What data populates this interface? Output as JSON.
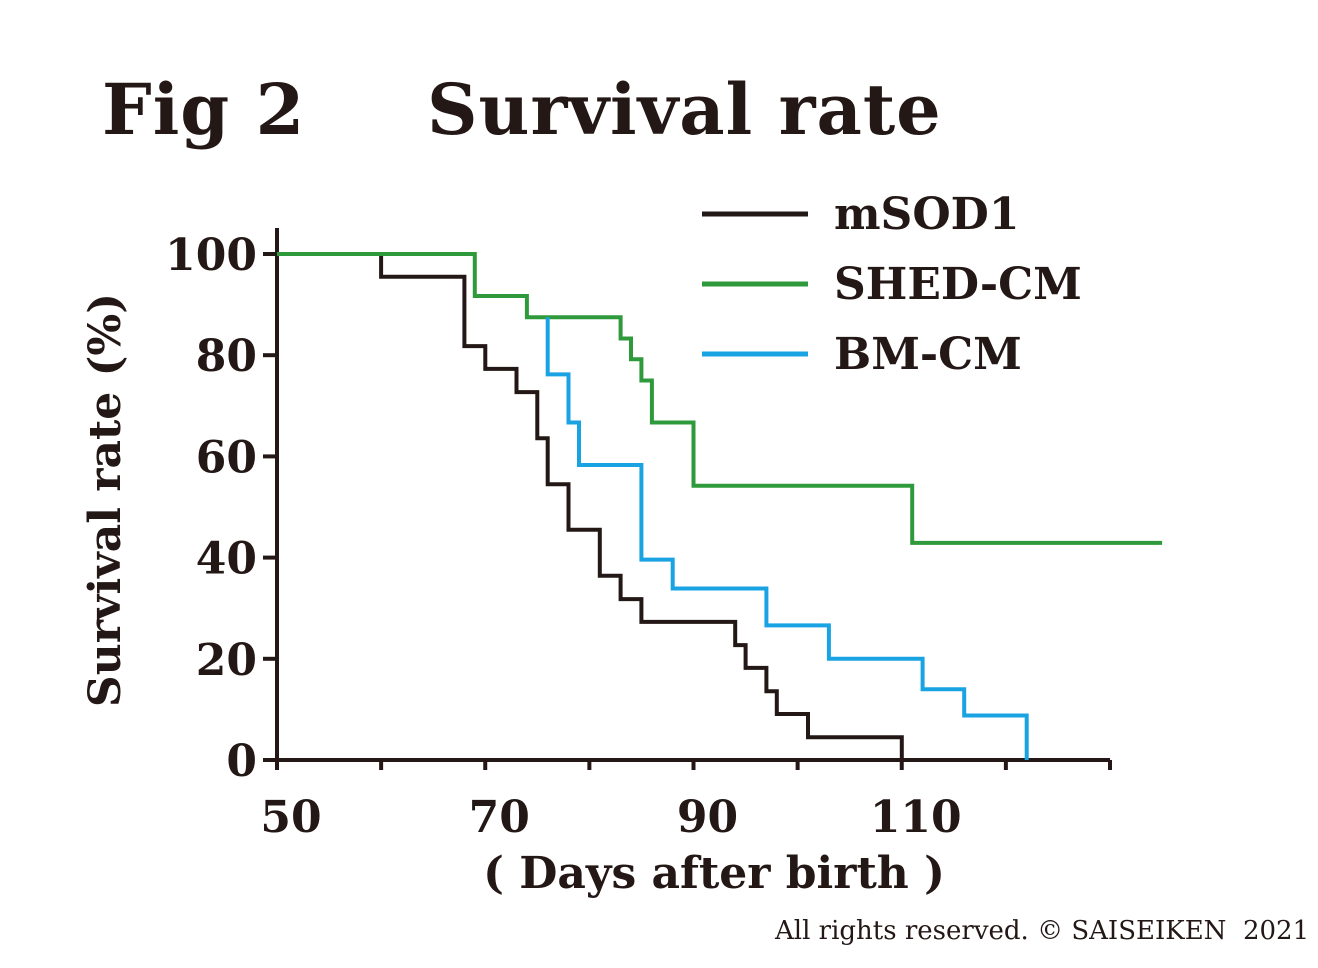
{
  "figure": {
    "label": "Fig 2",
    "title": "Survival rate",
    "copyright": "All rights reserved. © SAISEIKEN  2021"
  },
  "chart_data": {
    "type": "line",
    "step": true,
    "xlabel": "( Days after birth )",
    "ylabel": "Survival  rate (%)",
    "xlim": [
      50,
      130
    ],
    "ylim": [
      0,
      100
    ],
    "x_ticks": [
      50,
      70,
      90,
      110
    ],
    "y_ticks": [
      0,
      20,
      40,
      60,
      80,
      100
    ],
    "grid": false,
    "legend": "top-right",
    "series": [
      {
        "name": "mSOD1",
        "color": "#231815",
        "points": [
          [
            50,
            100
          ],
          [
            60,
            100
          ],
          [
            60,
            95.5
          ],
          [
            68,
            95.5
          ],
          [
            68,
            81.8
          ],
          [
            70,
            81.8
          ],
          [
            70,
            77.3
          ],
          [
            73,
            77.3
          ],
          [
            73,
            72.7
          ],
          [
            75,
            72.7
          ],
          [
            75,
            63.6
          ],
          [
            76,
            63.6
          ],
          [
            76,
            54.5
          ],
          [
            78,
            54.5
          ],
          [
            78,
            45.5
          ],
          [
            81,
            45.5
          ],
          [
            81,
            36.4
          ],
          [
            83,
            36.4
          ],
          [
            83,
            31.8
          ],
          [
            85,
            31.8
          ],
          [
            85,
            27.3
          ],
          [
            94,
            27.3
          ],
          [
            94,
            22.7
          ],
          [
            95,
            22.7
          ],
          [
            95,
            18.2
          ],
          [
            97,
            18.2
          ],
          [
            97,
            13.6
          ],
          [
            98,
            13.6
          ],
          [
            98,
            9.1
          ],
          [
            101,
            9.1
          ],
          [
            101,
            4.5
          ],
          [
            110,
            4.5
          ],
          [
            110,
            0
          ]
        ]
      },
      {
        "name": "SHED-CM",
        "color": "#2e9a3c",
        "points": [
          [
            50,
            100
          ],
          [
            69,
            100
          ],
          [
            69,
            91.7
          ],
          [
            74,
            91.7
          ],
          [
            74,
            87.5
          ],
          [
            83,
            87.5
          ],
          [
            83,
            83.3
          ],
          [
            84,
            83.3
          ],
          [
            84,
            79.2
          ],
          [
            85,
            79.2
          ],
          [
            85,
            75
          ],
          [
            86,
            75
          ],
          [
            86,
            66.7
          ],
          [
            90,
            66.7
          ],
          [
            90,
            54.2
          ],
          [
            111,
            54.2
          ],
          [
            111,
            42.9
          ],
          [
            135,
            42.9
          ]
        ]
      },
      {
        "name": "BM-CM",
        "color": "#1aa3e3",
        "points": [
          [
            76,
            87.5
          ],
          [
            76,
            76.2
          ],
          [
            78,
            76.2
          ],
          [
            78,
            66.7
          ],
          [
            79,
            66.7
          ],
          [
            79,
            58.3
          ],
          [
            85,
            58.3
          ],
          [
            85,
            39.6
          ],
          [
            88,
            39.6
          ],
          [
            88,
            33.9
          ],
          [
            97,
            33.9
          ],
          [
            97,
            26.6
          ],
          [
            103,
            26.6
          ],
          [
            103,
            20
          ],
          [
            112,
            20
          ],
          [
            112,
            14
          ],
          [
            116,
            14
          ],
          [
            116,
            8.8
          ],
          [
            122,
            8.8
          ],
          [
            122,
            0
          ]
        ]
      }
    ]
  }
}
